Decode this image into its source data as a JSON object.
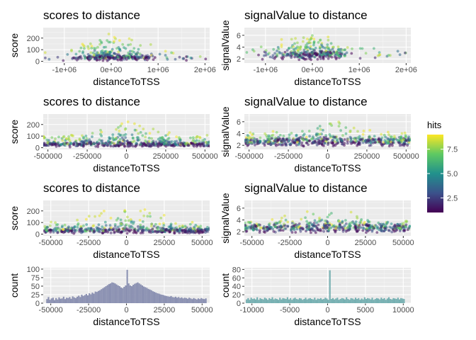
{
  "legend": {
    "title": "hits",
    "range": [
      1,
      9
    ],
    "ticks": [
      {
        "v": 2.5,
        "label": "2.5"
      },
      {
        "v": 5.0,
        "label": "5.0"
      },
      {
        "v": 7.5,
        "label": "7.5"
      }
    ],
    "colors": [
      "#440154",
      "#3b528b",
      "#21918c",
      "#5ec962",
      "#fde725"
    ]
  },
  "chart_data": [
    {
      "type": "scatter",
      "title": "scores to distance",
      "xlabel": "distanceToTSS",
      "ylabel": "score",
      "xlim": [
        -1450000,
        2100000
      ],
      "ylim": [
        -15,
        290
      ],
      "xticks": [
        {
          "v": -1000000,
          "label": "-1e+06"
        },
        {
          "v": 0,
          "label": "0e+00"
        },
        {
          "v": 1000000,
          "label": "1e+06"
        },
        {
          "v": 2000000,
          "label": "2e+06"
        }
      ],
      "yticks": [
        {
          "v": 0,
          "label": "0"
        },
        {
          "v": 100,
          "label": "100"
        },
        {
          "v": 200,
          "label": "200"
        }
      ],
      "x_spread": 400000,
      "y_low": [
        5,
        40
      ],
      "y_high": [
        30,
        260
      ],
      "n": 330
    },
    {
      "type": "scatter",
      "title": "signalValue to distance",
      "xlabel": "distanceToTSS",
      "ylabel": "signalValue",
      "xlim": [
        -1450000,
        2100000
      ],
      "ylim": [
        1.3,
        7.3
      ],
      "xticks": [
        {
          "v": -1000000,
          "label": "-1e+06"
        },
        {
          "v": 0,
          "label": "0e+00"
        },
        {
          "v": 1000000,
          "label": "1e+06"
        },
        {
          "v": 2000000,
          "label": "2e+06"
        }
      ],
      "yticks": [
        {
          "v": 2,
          "label": "2"
        },
        {
          "v": 4,
          "label": "4"
        },
        {
          "v": 6,
          "label": "6"
        }
      ],
      "x_spread": 400000,
      "y_low": [
        1.8,
        3.2
      ],
      "y_high": [
        2.5,
        7.0
      ],
      "n": 330
    },
    {
      "type": "scatter",
      "title": "scores to distance",
      "xlabel": "distanceToTSS",
      "ylabel": "score",
      "xlim": [
        -530000,
        530000
      ],
      "ylim": [
        -15,
        290
      ],
      "xticks": [
        {
          "v": -500000,
          "label": "-500000"
        },
        {
          "v": -250000,
          "label": "-250000"
        },
        {
          "v": 0,
          "label": "0"
        },
        {
          "v": 250000,
          "label": "250000"
        },
        {
          "v": 500000,
          "label": "500000"
        }
      ],
      "yticks": [
        {
          "v": 0,
          "label": "0"
        },
        {
          "v": 100,
          "label": "100"
        },
        {
          "v": 200,
          "label": "200"
        }
      ],
      "x_spread": 0,
      "y_low": [
        5,
        40
      ],
      "y_high": [
        30,
        260
      ],
      "n": 520
    },
    {
      "type": "scatter",
      "title": "signalValue to distance",
      "xlabel": "distanceToTSS",
      "ylabel": "signalValue",
      "xlim": [
        -530000,
        530000
      ],
      "ylim": [
        1.3,
        7.3
      ],
      "xticks": [
        {
          "v": -500000,
          "label": "-500000"
        },
        {
          "v": -250000,
          "label": "-250000"
        },
        {
          "v": 0,
          "label": "0"
        },
        {
          "v": 250000,
          "label": "250000"
        },
        {
          "v": 500000,
          "label": "500000"
        }
      ],
      "yticks": [
        {
          "v": 2,
          "label": "2"
        },
        {
          "v": 4,
          "label": "4"
        },
        {
          "v": 6,
          "label": "6"
        }
      ],
      "x_spread": 0,
      "y_low": [
        1.8,
        3.2
      ],
      "y_high": [
        2.5,
        7.0
      ],
      "n": 520
    },
    {
      "type": "scatter",
      "title": "scores to distance",
      "xlabel": "distanceToTSS",
      "ylabel": "score",
      "xlim": [
        -55000,
        55000
      ],
      "ylim": [
        -15,
        290
      ],
      "xticks": [
        {
          "v": -50000,
          "label": "-50000"
        },
        {
          "v": -25000,
          "label": "-25000"
        },
        {
          "v": 0,
          "label": "0"
        },
        {
          "v": 25000,
          "label": "25000"
        },
        {
          "v": 50000,
          "label": "50000"
        }
      ],
      "yticks": [
        {
          "v": 0,
          "label": "0"
        },
        {
          "v": 100,
          "label": "100"
        },
        {
          "v": 200,
          "label": "200"
        }
      ],
      "x_spread": 0,
      "y_low": [
        5,
        40
      ],
      "y_high": [
        30,
        260
      ],
      "n": 480
    },
    {
      "type": "scatter",
      "title": "signalValue to distance",
      "xlabel": "distanceToTSS",
      "ylabel": "signalValue",
      "xlim": [
        -55000,
        55000
      ],
      "ylim": [
        1.3,
        7.3
      ],
      "xticks": [
        {
          "v": -50000,
          "label": "-50000"
        },
        {
          "v": -25000,
          "label": "-25000"
        },
        {
          "v": 0,
          "label": "0"
        },
        {
          "v": 25000,
          "label": "25000"
        },
        {
          "v": 50000,
          "label": "50000"
        }
      ],
      "yticks": [
        {
          "v": 2,
          "label": "2"
        },
        {
          "v": 4,
          "label": "4"
        },
        {
          "v": 6,
          "label": "6"
        }
      ],
      "x_spread": 0,
      "y_low": [
        1.8,
        3.2
      ],
      "y_high": [
        2.5,
        7.0
      ],
      "n": 480
    },
    {
      "type": "bar",
      "title": "",
      "xlabel": "distanceToTSS",
      "ylabel": "count",
      "xlim": [
        -55000,
        55000
      ],
      "ylim": [
        0,
        104
      ],
      "fill": "#8b91b2",
      "xticks": [
        {
          "v": -50000,
          "label": "-50000"
        },
        {
          "v": -25000,
          "label": "-25000"
        },
        {
          "v": 0,
          "label": "0"
        },
        {
          "v": 25000,
          "label": "25000"
        },
        {
          "v": 50000,
          "label": "50000"
        }
      ],
      "yticks": [
        {
          "v": 0,
          "label": "0"
        },
        {
          "v": 25,
          "label": "25"
        },
        {
          "v": 50,
          "label": "50"
        },
        {
          "v": 75,
          "label": "75"
        },
        {
          "v": 100,
          "label": "100"
        }
      ],
      "bin_start": -53000,
      "bin_width": 1000,
      "values": [
        12,
        18,
        10,
        14,
        16,
        9,
        15,
        11,
        17,
        13,
        14,
        19,
        12,
        16,
        15,
        18,
        13,
        20,
        17,
        15,
        19,
        22,
        18,
        25,
        21,
        24,
        27,
        23,
        29,
        26,
        31,
        28,
        34,
        33,
        36,
        38,
        41,
        44,
        47,
        50,
        53,
        56,
        58,
        61,
        60,
        58,
        55,
        52,
        50,
        46,
        44,
        48,
        52,
        98,
        58,
        52,
        50,
        54,
        57,
        59,
        61,
        58,
        55,
        52,
        49,
        47,
        45,
        42,
        40,
        38,
        35,
        33,
        31,
        29,
        28,
        26,
        25,
        24,
        22,
        21,
        20,
        19,
        21,
        18,
        17,
        19,
        16,
        18,
        15,
        17,
        14,
        16,
        15,
        13,
        16,
        14,
        12,
        15,
        13,
        11,
        14,
        12,
        15,
        13,
        12,
        14
      ]
    },
    {
      "type": "bar",
      "title": "",
      "xlabel": "distanceToTSS",
      "ylabel": "count",
      "xlim": [
        -11000,
        11000
      ],
      "ylim": [
        0,
        84
      ],
      "fill": "#76b0b2",
      "xticks": [
        {
          "v": -10000,
          "label": "-10000"
        },
        {
          "v": -5000,
          "label": "-5000"
        },
        {
          "v": 0,
          "label": "0"
        },
        {
          "v": 5000,
          "label": "5000"
        },
        {
          "v": 10000,
          "label": "10000"
        }
      ],
      "yticks": [
        {
          "v": 0,
          "label": "0"
        },
        {
          "v": 20,
          "label": "20"
        },
        {
          "v": 40,
          "label": "40"
        },
        {
          "v": 60,
          "label": "60"
        },
        {
          "v": 80,
          "label": "80"
        }
      ],
      "bin_start": -10800,
      "bin_width": 200,
      "values": [
        9,
        12,
        8,
        13,
        10,
        11,
        9,
        14,
        8,
        12,
        10,
        9,
        13,
        11,
        8,
        12,
        10,
        14,
        9,
        11,
        10,
        8,
        13,
        9,
        12,
        11,
        10,
        14,
        9,
        12,
        8,
        11,
        13,
        10,
        9,
        12,
        11,
        8,
        10,
        13,
        9,
        11,
        12,
        10,
        9,
        13,
        8,
        11,
        10,
        12,
        9,
        10,
        13,
        11,
        8,
        78,
        10,
        12,
        9,
        11,
        13,
        8,
        10,
        12,
        11,
        9,
        14,
        10,
        8,
        12,
        11,
        9,
        13,
        10,
        12,
        8,
        11,
        9,
        14,
        10,
        12,
        11,
        9,
        13,
        8,
        10,
        12,
        11,
        9,
        13,
        10,
        12,
        8,
        11,
        14,
        10,
        9,
        12,
        11,
        10,
        13,
        9,
        12,
        11,
        10
      ]
    }
  ]
}
